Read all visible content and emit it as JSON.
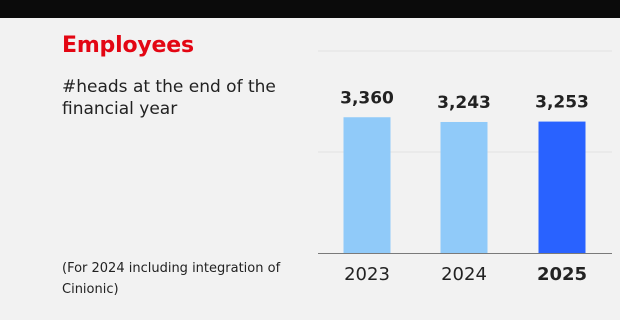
{
  "header": {
    "title": "Employees",
    "subtitle": "#heads at the end of the financial year",
    "footnote": "(For 2024 including integration of Cinionic)"
  },
  "colors": {
    "title": "#e30613",
    "bar_light": "#90caf9",
    "bar_highlight": "#2962ff",
    "topbar": "#0b0b0b",
    "background": "#f2f2f2"
  },
  "chart_data": {
    "type": "bar",
    "title": "Employees",
    "subtitle": "#heads at the end of the financial year",
    "xlabel": "",
    "ylabel": "",
    "categories": [
      "2023",
      "2024",
      "2025"
    ],
    "values": [
      3360,
      3243,
      3253
    ],
    "value_labels": [
      "3,360",
      "3,243",
      "3,253"
    ],
    "highlight": "2025",
    "ylim": [
      0,
      5000
    ],
    "grid": true
  }
}
